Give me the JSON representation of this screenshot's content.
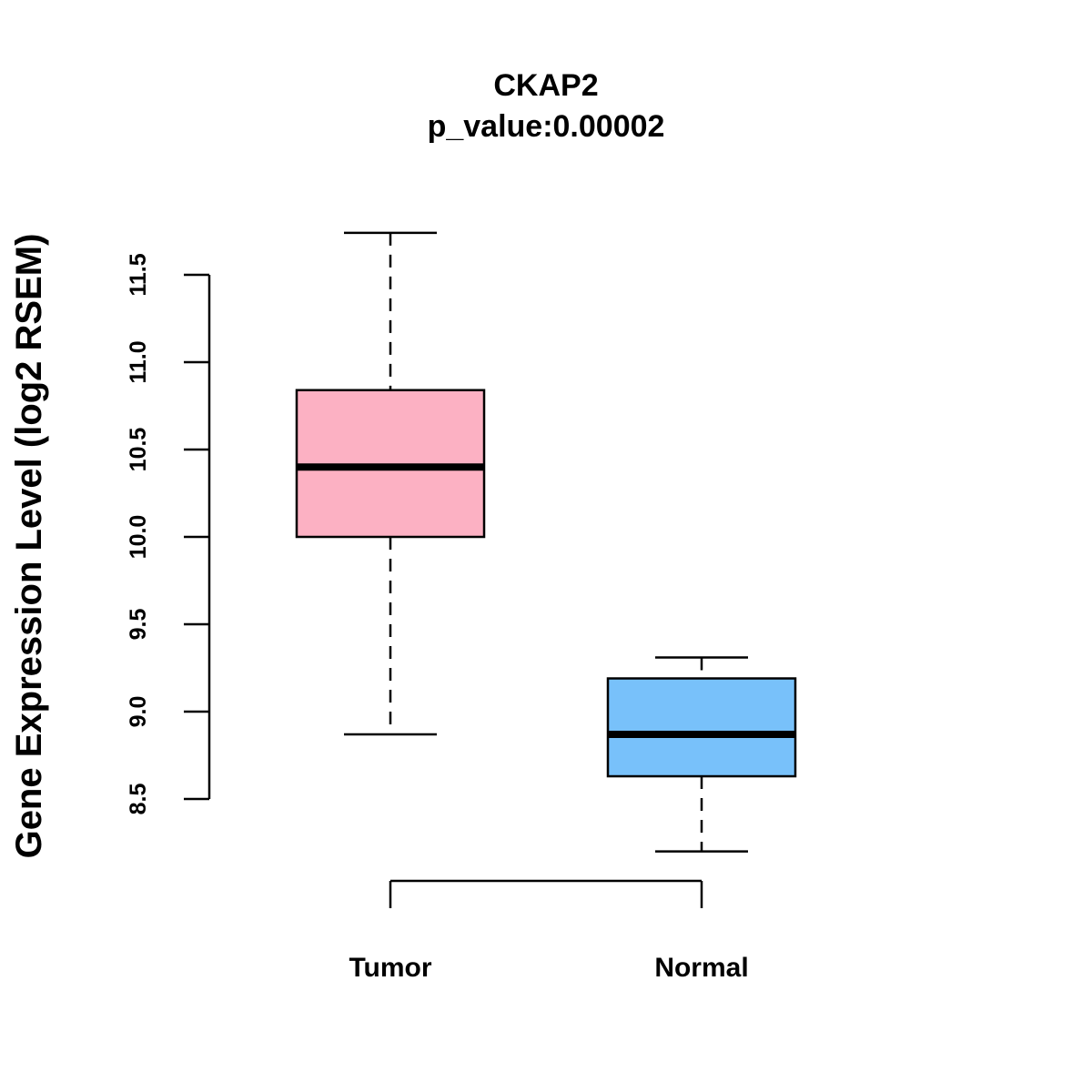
{
  "chart_data": {
    "type": "boxplot",
    "title": "CKAP2",
    "subtitle": "p_value:0.00002",
    "ylabel": "Gene Expression Level (log2 RSEM)",
    "xlabel": "",
    "ylim": [
      8.5,
      11.5
    ],
    "yticks": [
      8.5,
      9.0,
      9.5,
      10.0,
      10.5,
      11.0,
      11.5
    ],
    "ytick_labels": [
      "8.5",
      "9.0",
      "9.5",
      "10.0",
      "10.5",
      "11.0",
      "11.5"
    ],
    "categories": [
      "Tumor",
      "Normal"
    ],
    "series": [
      {
        "name": "Tumor",
        "whisker_low": 8.87,
        "q1": 10.0,
        "median": 10.4,
        "q3": 10.84,
        "whisker_high": 11.74,
        "color": "#FCB1C3"
      },
      {
        "name": "Normal",
        "whisker_low": 8.2,
        "q1": 8.63,
        "median": 8.87,
        "q3": 9.19,
        "whisker_high": 9.31,
        "color": "#78C1FA"
      }
    ],
    "grid": false,
    "legend": "none"
  }
}
